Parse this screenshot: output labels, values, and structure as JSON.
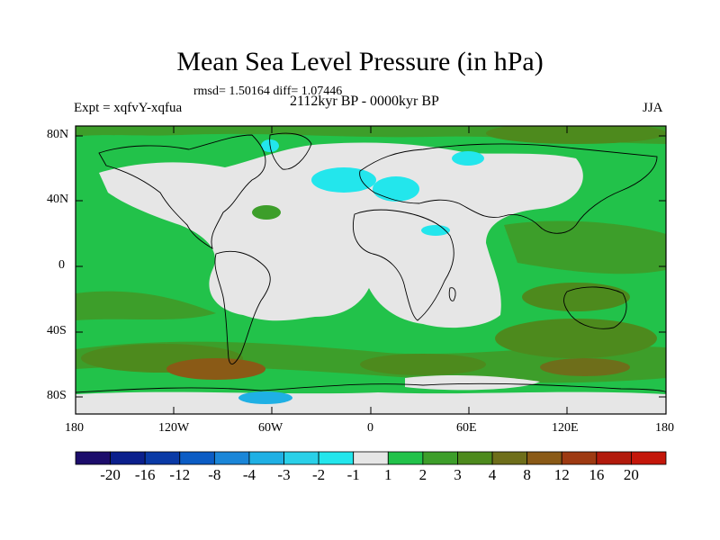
{
  "title": "Mean Sea Level Pressure (in hPa)",
  "stats": "rmsd= 1.50164 diff= 1.07446",
  "experiment": "Expt = xqfvY-xqfua",
  "period": "2112kyr BP - 0000kyr BP",
  "season": "JJA",
  "lat_ticks": [
    "80N",
    "40N",
    "0",
    "40S",
    "80S"
  ],
  "lon_ticks": [
    "180",
    "120W",
    "60W",
    "0",
    "60E",
    "120E",
    "180"
  ],
  "colorbar": {
    "labels": [
      "-20",
      "-16",
      "-12",
      "-8",
      "-4",
      "-3",
      "-2",
      "-1",
      "1",
      "2",
      "3",
      "4",
      "8",
      "12",
      "16",
      "20"
    ],
    "colors": [
      "#1c0d6b",
      "#0b1f8c",
      "#0a3aa6",
      "#0b5cc4",
      "#1a86d8",
      "#1fb0e4",
      "#2ad0e8",
      "#23e6ec",
      "#e6e6e6",
      "#22c24a",
      "#3d9e2a",
      "#4d8a1d",
      "#6e6e1a",
      "#8a5a16",
      "#9e3a12",
      "#b21a0c",
      "#c4160a"
    ]
  },
  "colors": {
    "near_zero": "#e6e6e6",
    "slight_pos": "#22c24a",
    "pos": "#3d9e2a",
    "strong_pos": "#6e6e1a",
    "very_strong_pos": "#8a5a16",
    "slight_neg": "#23e6ec",
    "neg": "#1fb0e4"
  }
}
